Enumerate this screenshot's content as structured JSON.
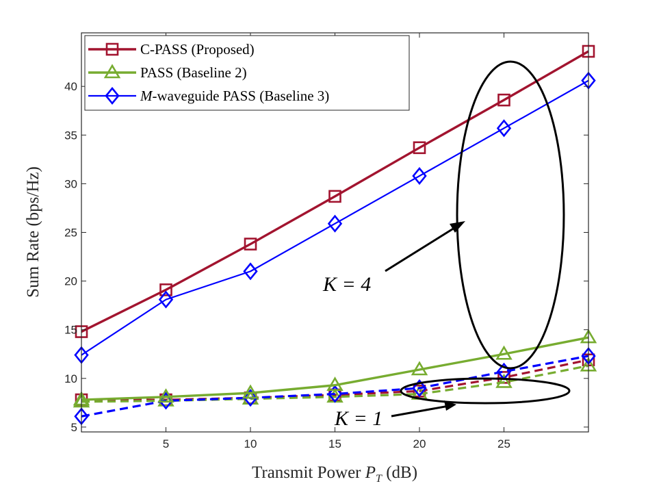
{
  "chart_data": {
    "type": "line",
    "xlabel": "Transmit Power P_T (dB)",
    "ylabel": "Sum Rate (bps/Hz)",
    "xlim": [
      0,
      30
    ],
    "ylim": [
      4.5,
      45.5
    ],
    "xticks": [
      5,
      10,
      15,
      20,
      25
    ],
    "yticks": [
      5,
      10,
      15,
      20,
      25,
      30,
      35,
      40
    ],
    "x": [
      0,
      5,
      10,
      15,
      20,
      25,
      30
    ],
    "colors": {
      "cpass": "#a2142f",
      "pass": "#77ac30",
      "mwave": "#0000ff"
    },
    "series": [
      {
        "id": "cpass_k4",
        "name": "C-PASS (Proposed)",
        "K": 4,
        "marker": "square",
        "style": "solid",
        "color": "#a2142f",
        "values": [
          14.8,
          19.1,
          23.8,
          28.7,
          33.7,
          38.6,
          43.6
        ]
      },
      {
        "id": "mwave_k4",
        "name": "M-waveguide PASS (Baseline 3)",
        "K": 4,
        "marker": "diamond",
        "style": "solid",
        "color": "#0000ff",
        "values": [
          12.4,
          18.1,
          21.0,
          25.9,
          30.8,
          35.7,
          40.6
        ]
      },
      {
        "id": "pass_k4",
        "name": "PASS (Baseline 2)",
        "K": 4,
        "marker": "triangle",
        "style": "solid",
        "color": "#77ac30",
        "values": [
          7.8,
          8.1,
          8.5,
          9.3,
          10.9,
          12.5,
          14.2
        ]
      },
      {
        "id": "cpass_k1",
        "name": "C-PASS (Proposed)",
        "K": 1,
        "marker": "square",
        "style": "dashed",
        "color": "#a2142f",
        "values": [
          7.8,
          7.8,
          8.0,
          8.3,
          8.7,
          10.1,
          11.9
        ]
      },
      {
        "id": "pass_k1",
        "name": "PASS (Baseline 2)",
        "K": 1,
        "marker": "triangle",
        "style": "dashed",
        "color": "#77ac30",
        "values": [
          7.6,
          7.7,
          7.9,
          8.1,
          8.4,
          9.6,
          11.3
        ]
      },
      {
        "id": "mwave_k1",
        "name": "M-waveguide PASS (Baseline 3)",
        "K": 1,
        "marker": "diamond",
        "style": "dashed",
        "color": "#0000ff",
        "values": [
          6.1,
          7.7,
          8.0,
          8.4,
          9.0,
          10.7,
          12.3
        ]
      }
    ],
    "legend": {
      "position": "top-left",
      "entries": [
        {
          "label": "C-PASS (Proposed)",
          "marker": "square",
          "color": "#a2142f"
        },
        {
          "label": "PASS (Baseline 2)",
          "marker": "triangle",
          "color": "#77ac30"
        },
        {
          "label_prefix": "M",
          "label": "-waveguide PASS (Baseline 3)",
          "marker": "diamond",
          "color": "#0000ff"
        }
      ]
    },
    "annotations": [
      {
        "id": "k4",
        "text": "K = 4",
        "target": "upper curves at P_T = 25 dB"
      },
      {
        "id": "k1",
        "text": "K = 1",
        "target": "lower dashed curves at P_T = 20–25 dB"
      }
    ]
  }
}
